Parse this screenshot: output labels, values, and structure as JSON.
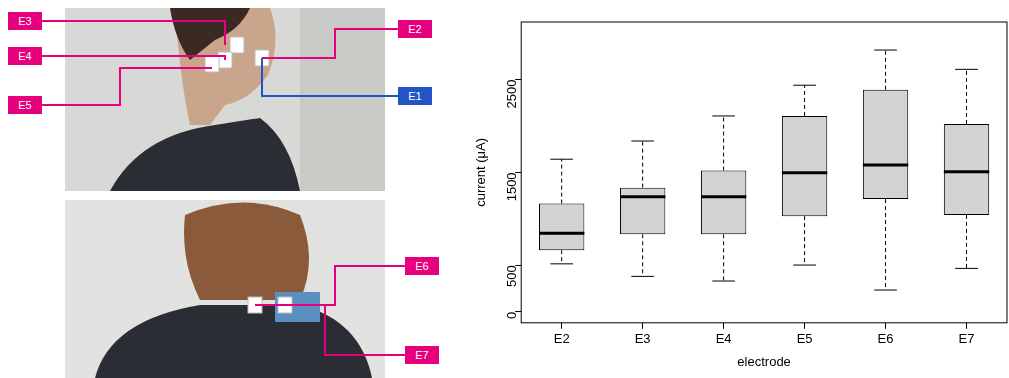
{
  "chart_data": {
    "type": "box",
    "x_label": "electrode",
    "y_label": "current (μA)",
    "categories": [
      "E2",
      "E3",
      "E4",
      "E5",
      "E6",
      "E7"
    ],
    "min": [
      515,
      380,
      330,
      502,
      233,
      466
    ],
    "q1": [
      662,
      833,
      833,
      1029,
      1213,
      1042
    ],
    "median": [
      845,
      1238,
      1238,
      1495,
      1581,
      1507
    ],
    "q3": [
      1164,
      1336,
      1520,
      2108,
      2390,
      2022
    ],
    "max": [
      1642,
      1838,
      2108,
      2439,
      2818,
      2610
    ],
    "color": "#d3d3d3",
    "ylim": [
      -120,
      3120
    ],
    "yticks": [
      0,
      500,
      1500,
      2500
    ],
    "grid": false
  },
  "photo_labels": [
    {
      "text": "E3",
      "color": "#e6007e"
    },
    {
      "text": "E4",
      "color": "#e6007e"
    },
    {
      "text": "E5",
      "color": "#e6007e"
    },
    {
      "text": "E2",
      "color": "#e6007e"
    },
    {
      "text": "E1",
      "color": "#2255c4"
    },
    {
      "text": "E6",
      "color": "#e6007e"
    },
    {
      "text": "E7",
      "color": "#e6007e"
    }
  ]
}
